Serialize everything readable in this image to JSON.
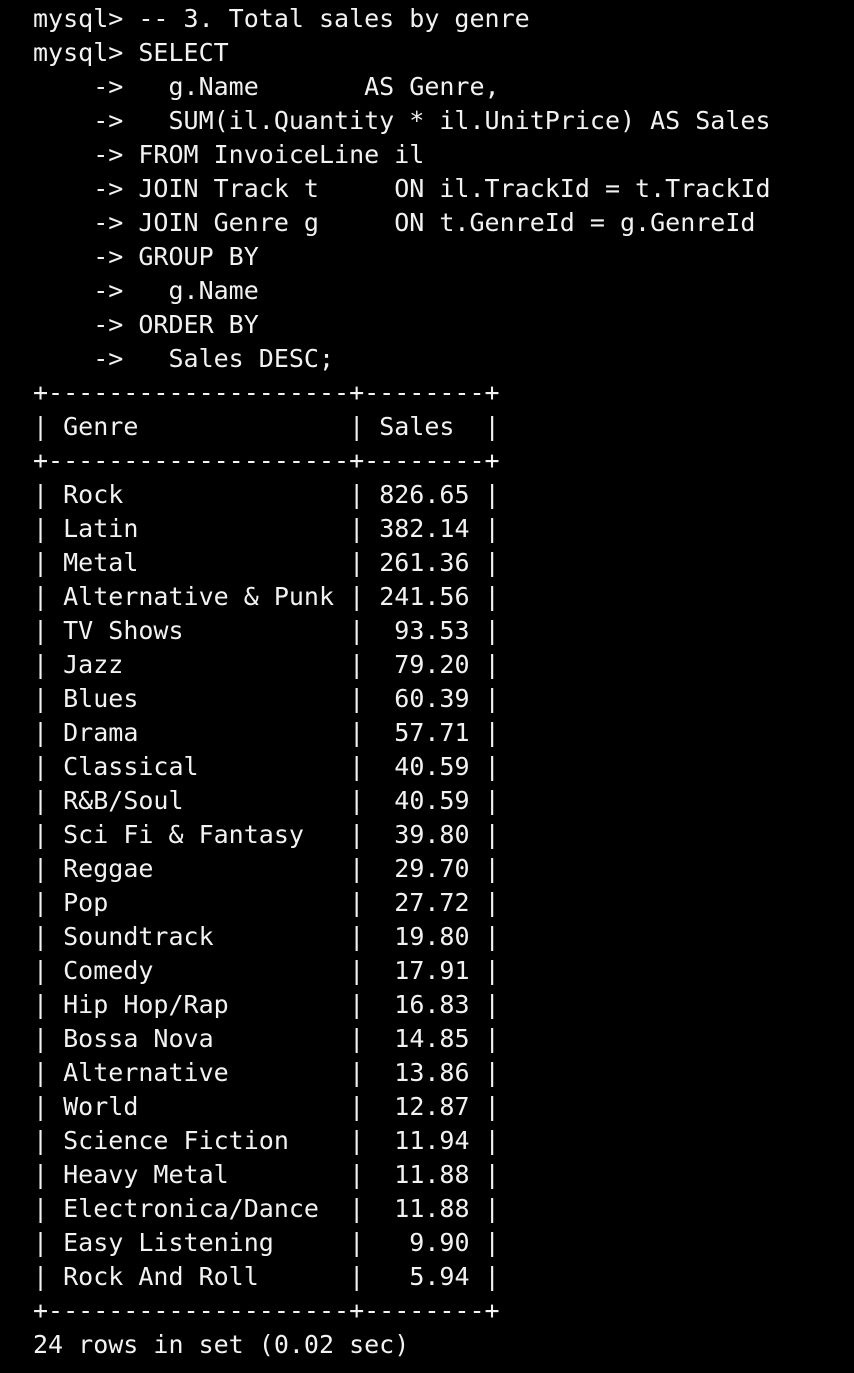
{
  "terminal": {
    "prompt": "mysql> ",
    "continuation": "    -> ",
    "comment_line": "-- 3. Total sales by genre",
    "query_lines": [
      "SELECT",
      "  g.Name       AS Genre,",
      "  SUM(il.Quantity * il.UnitPrice) AS Sales",
      "FROM InvoiceLine il",
      "JOIN Track t     ON il.TrackId = t.TrackId",
      "JOIN Genre g     ON t.GenreId = g.GenreId",
      "GROUP BY",
      "  g.Name",
      "ORDER BY",
      "  Sales DESC;"
    ]
  },
  "result": {
    "columns": [
      "Genre",
      "Sales"
    ],
    "rows": [
      [
        "Rock",
        "826.65"
      ],
      [
        "Latin",
        "382.14"
      ],
      [
        "Metal",
        "261.36"
      ],
      [
        "Alternative & Punk",
        "241.56"
      ],
      [
        "TV Shows",
        "93.53"
      ],
      [
        "Jazz",
        "79.20"
      ],
      [
        "Blues",
        "60.39"
      ],
      [
        "Drama",
        "57.71"
      ],
      [
        "Classical",
        "40.59"
      ],
      [
        "R&B/Soul",
        "40.59"
      ],
      [
        "Sci Fi & Fantasy",
        "39.80"
      ],
      [
        "Reggae",
        "29.70"
      ],
      [
        "Pop",
        "27.72"
      ],
      [
        "Soundtrack",
        "19.80"
      ],
      [
        "Comedy",
        "17.91"
      ],
      [
        "Hip Hop/Rap",
        "16.83"
      ],
      [
        "Bossa Nova",
        "14.85"
      ],
      [
        "Alternative",
        "13.86"
      ],
      [
        "World",
        "12.87"
      ],
      [
        "Science Fiction",
        "11.94"
      ],
      [
        "Heavy Metal",
        "11.88"
      ],
      [
        "Electronica/Dance",
        "11.88"
      ],
      [
        "Easy Listening",
        "9.90"
      ],
      [
        "Rock And Roll",
        "5.94"
      ]
    ],
    "footer": "24 rows in set (0.02 sec)"
  },
  "colors": {
    "background": "#000000",
    "text": "#f2f2f2"
  }
}
